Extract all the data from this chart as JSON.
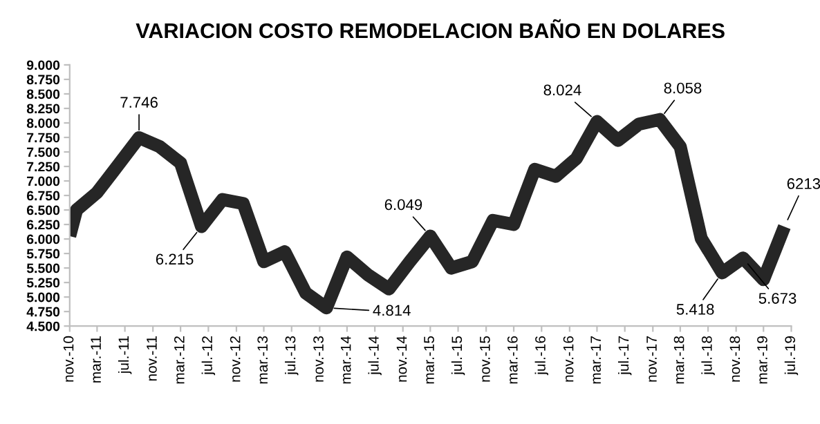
{
  "chart_data": {
    "type": "line",
    "title": "VARIACION COSTO REMODELACION BAÑO EN DOLARES",
    "x": [
      "2010-11",
      "2010-12",
      "2011-03",
      "2011-06",
      "2011-09",
      "2011-12",
      "2012-03",
      "2012-06",
      "2012-09",
      "2012-12",
      "2013-03",
      "2013-06",
      "2013-09",
      "2013-12",
      "2014-03",
      "2014-06",
      "2014-09",
      "2014-12",
      "2015-03",
      "2015-06",
      "2015-09",
      "2015-12",
      "2016-03",
      "2016-06",
      "2016-09",
      "2016-12",
      "2017-03",
      "2017-06",
      "2017-09",
      "2017-12",
      "2018-03",
      "2018-06",
      "2018-09",
      "2018-12",
      "2019-03",
      "2019-06"
    ],
    "series": [
      {
        "color": "#262626",
        "values": [
          6050,
          6500,
          6800,
          7270,
          7746,
          7590,
          7310,
          6215,
          6680,
          6610,
          5610,
          5780,
          5070,
          4814,
          5690,
          5380,
          5140,
          5610,
          6049,
          5500,
          5610,
          6320,
          6250,
          7200,
          7080,
          7390,
          8024,
          7700,
          7980,
          8058,
          7590,
          6010,
          5418,
          5673,
          5300,
          6213
        ],
        "value_labels": [
          null,
          null,
          null,
          null,
          "7.746",
          null,
          null,
          "6.215",
          null,
          null,
          null,
          null,
          null,
          "4.814",
          null,
          null,
          null,
          null,
          "6.049",
          null,
          null,
          null,
          null,
          null,
          null,
          null,
          "8.024",
          null,
          null,
          "8.058",
          null,
          null,
          "5.418",
          "5.673",
          null,
          "6213"
        ]
      }
    ],
    "xlim": [
      "2010-11",
      "2019-07"
    ],
    "xticks": [
      {
        "value": "2010-11",
        "label": "nov.-10"
      },
      {
        "value": "2011-03",
        "label": "mar.-11"
      },
      {
        "value": "2011-07",
        "label": "jul.-11"
      },
      {
        "value": "2011-11",
        "label": "nov.-11"
      },
      {
        "value": "2012-03",
        "label": "mar.-12"
      },
      {
        "value": "2012-07",
        "label": "jul.-12"
      },
      {
        "value": "2012-11",
        "label": "nov.-12"
      },
      {
        "value": "2013-03",
        "label": "mar.-13"
      },
      {
        "value": "2013-07",
        "label": "jul.-13"
      },
      {
        "value": "2013-11",
        "label": "nov.-13"
      },
      {
        "value": "2014-03",
        "label": "mar.-14"
      },
      {
        "value": "2014-07",
        "label": "jul.-14"
      },
      {
        "value": "2014-11",
        "label": "nov.-14"
      },
      {
        "value": "2015-03",
        "label": "mar.-15"
      },
      {
        "value": "2015-07",
        "label": "jul.-15"
      },
      {
        "value": "2015-11",
        "label": "nov.-15"
      },
      {
        "value": "2016-03",
        "label": "mar.-16"
      },
      {
        "value": "2016-07",
        "label": "jul.-16"
      },
      {
        "value": "2016-11",
        "label": "nov.-16"
      },
      {
        "value": "2017-03",
        "label": "mar.-17"
      },
      {
        "value": "2017-07",
        "label": "jul.-17"
      },
      {
        "value": "2017-11",
        "label": "nov.-17"
      },
      {
        "value": "2018-03",
        "label": "mar.-18"
      },
      {
        "value": "2018-07",
        "label": "jul.-18"
      },
      {
        "value": "2018-11",
        "label": "nov.-18"
      },
      {
        "value": "2019-03",
        "label": "mar.-19"
      },
      {
        "value": "2019-07",
        "label": "jul.-19"
      }
    ],
    "ylim": [
      4500,
      9000
    ],
    "yticks": [
      {
        "value": 4500,
        "label": "4.500"
      },
      {
        "value": 4750,
        "label": "4.750"
      },
      {
        "value": 5000,
        "label": "5.000"
      },
      {
        "value": 5250,
        "label": "5.250"
      },
      {
        "value": 5500,
        "label": "5.500"
      },
      {
        "value": 5750,
        "label": "5.750"
      },
      {
        "value": 6000,
        "label": "6.000"
      },
      {
        "value": 6250,
        "label": "6.250"
      },
      {
        "value": 6500,
        "label": "6.500"
      },
      {
        "value": 6750,
        "label": "6.750"
      },
      {
        "value": 7000,
        "label": "7.000"
      },
      {
        "value": 7250,
        "label": "7.250"
      },
      {
        "value": 7500,
        "label": "7.500"
      },
      {
        "value": 7750,
        "label": "7.750"
      },
      {
        "value": 8000,
        "label": "8.000"
      },
      {
        "value": 8250,
        "label": "8.250"
      },
      {
        "value": 8500,
        "label": "8.500"
      },
      {
        "value": 8750,
        "label": "8.750"
      },
      {
        "value": 9000,
        "label": "9.000"
      }
    ],
    "grid": false,
    "legend": false,
    "marker": "none",
    "line_style": "solid"
  }
}
